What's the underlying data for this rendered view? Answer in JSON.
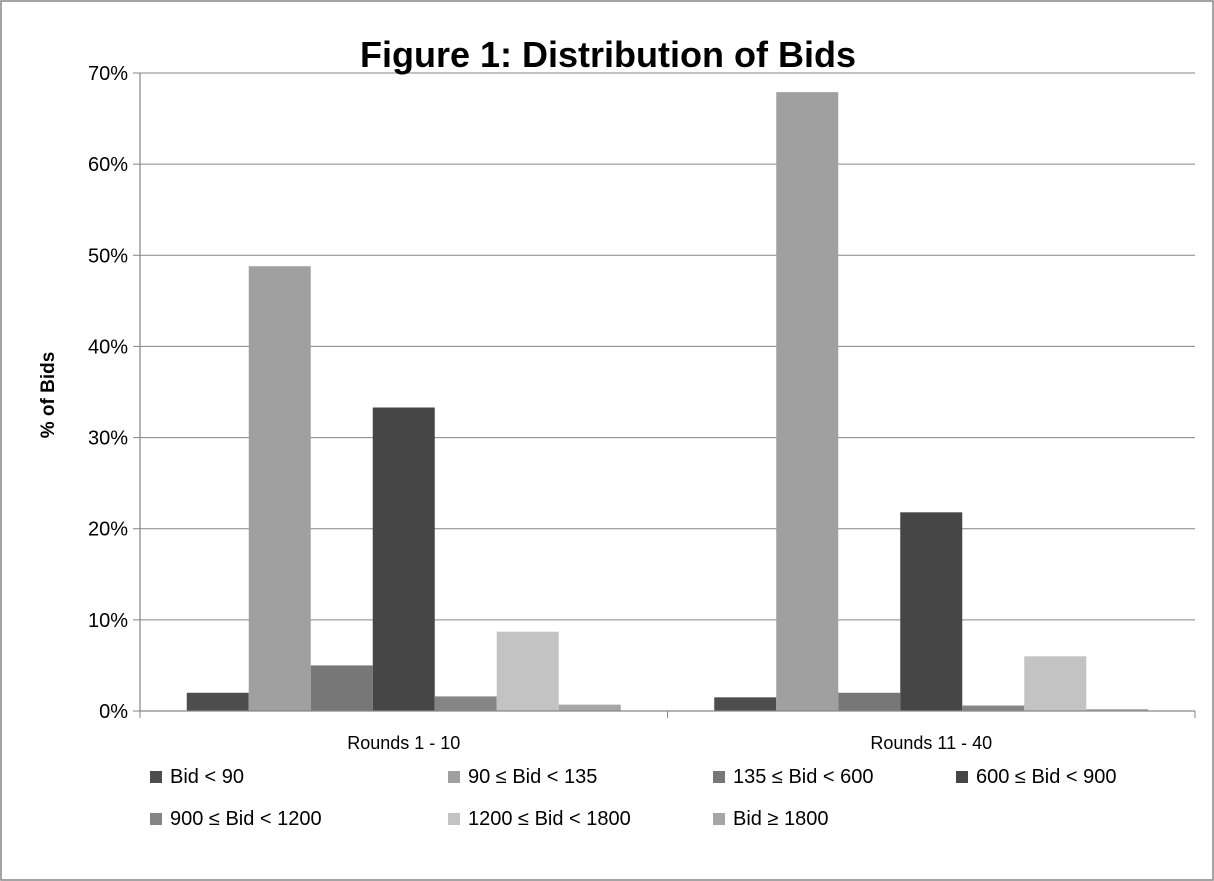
{
  "chart_data": {
    "type": "bar",
    "title": "Figure 1: Distribution of Bids",
    "ylabel": "% of Bids",
    "xlabel": "",
    "categories": [
      "Rounds 1 - 10",
      "Rounds 11 - 40"
    ],
    "ylim": [
      0,
      70
    ],
    "y_ticks": [
      0,
      10,
      20,
      30,
      40,
      50,
      60,
      70
    ],
    "y_tick_format": "percent",
    "grid": true,
    "legend_position": "bottom",
    "series": [
      {
        "name": "Bid < 90",
        "values": [
          2.0,
          1.5
        ],
        "color": "#4d4d4d"
      },
      {
        "name": "90 ≤ Bid < 135",
        "values": [
          48.8,
          67.9
        ],
        "color": "#a0a0a0"
      },
      {
        "name": "135 ≤ Bid < 600",
        "values": [
          5.0,
          2.0
        ],
        "color": "#777777"
      },
      {
        "name": "600 ≤ Bid < 900",
        "values": [
          33.3,
          21.8
        ],
        "color": "#464646"
      },
      {
        "name": "900 ≤ Bid < 1200",
        "values": [
          1.6,
          0.6
        ],
        "color": "#858585"
      },
      {
        "name": "1200 ≤ Bid < 1800",
        "values": [
          8.7,
          6.0
        ],
        "color": "#c3c3c3"
      },
      {
        "name": "Bid ≥ 1800",
        "values": [
          0.7,
          0.2
        ],
        "color": "#a6a6a6"
      }
    ]
  }
}
